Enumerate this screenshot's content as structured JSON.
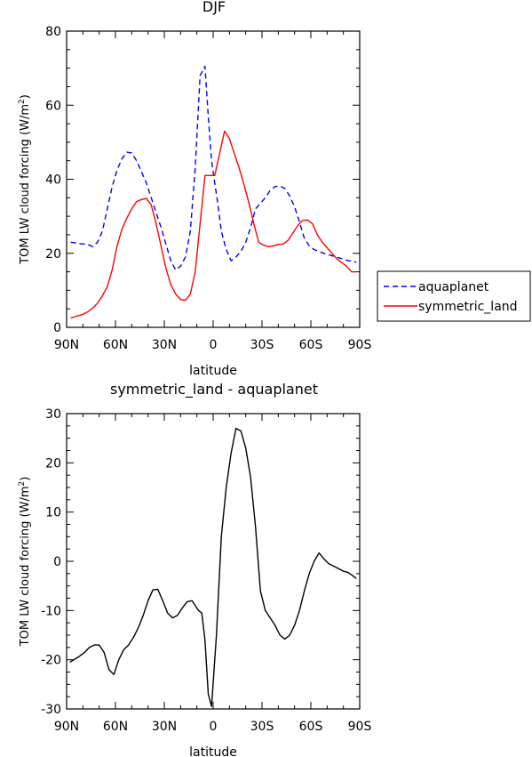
{
  "chart_data": [
    {
      "type": "line",
      "title": "DJF",
      "xlabel": "latitude",
      "ylabel": "TOM LW cloud forcing (W/m2)",
      "ylabel_main": "TOM LW cloud forcing (W/m",
      "ylabel_sup": "2",
      "ylabel_end": ")",
      "xlim": [
        90,
        -90
      ],
      "ylim": [
        0,
        80
      ],
      "xticks": [
        90,
        60,
        30,
        0,
        -30,
        -60,
        -90
      ],
      "xtick_labels": [
        "90N",
        "60N",
        "30N",
        "0",
        "30S",
        "60S",
        "90S"
      ],
      "yticks": [
        0,
        20,
        40,
        60,
        80
      ],
      "ytick_labels": [
        "0",
        "20",
        "40",
        "60",
        "80"
      ],
      "legend_position": "right",
      "series": [
        {
          "name": "aquaplanet",
          "color": "#0000ff",
          "dash": "dashed",
          "x": [
            87.5,
            82,
            77,
            74,
            71,
            68,
            65,
            62,
            59,
            56,
            53,
            50,
            47,
            44,
            41,
            38,
            35,
            32,
            29,
            26,
            23,
            20,
            17,
            14,
            11,
            8,
            5,
            3,
            1,
            -1,
            -3,
            -5,
            -8,
            -11,
            -14,
            -17,
            -20,
            -23,
            -26,
            -29,
            -32,
            -35,
            -38,
            -41,
            -44,
            -47,
            -50,
            -53,
            -56,
            -59,
            -62,
            -65,
            -68,
            -71,
            -74,
            -77,
            -80,
            -83,
            -86,
            -88
          ],
          "y": [
            23,
            22.6,
            22.4,
            21.8,
            23,
            26,
            32,
            38,
            42.5,
            45.5,
            47.3,
            47.1,
            45,
            42,
            39,
            35,
            31,
            27,
            22.5,
            18,
            15.5,
            16.5,
            19,
            26,
            43,
            68,
            70.5,
            57,
            45,
            39,
            33,
            26,
            21,
            18,
            19,
            20.5,
            23,
            27,
            32,
            33.5,
            35,
            37,
            38,
            38.2,
            37.5,
            35.5,
            32.5,
            28.5,
            24,
            22,
            21,
            20.5,
            20,
            19.6,
            19.2,
            18.8,
            18.4,
            18,
            17.8,
            17.6
          ]
        },
        {
          "name": "symmetric_land",
          "color": "#ff0000",
          "dash": "solid",
          "x": [
            87.5,
            84,
            80,
            77,
            74,
            71,
            68,
            65,
            62,
            59,
            56,
            53,
            50,
            47,
            44,
            41,
            38,
            35,
            32,
            29,
            26,
            23,
            20,
            17,
            14,
            11,
            8,
            5,
            2,
            -1,
            -4,
            -7,
            -10,
            -13,
            -16,
            -19,
            -22,
            -25,
            -28,
            -31,
            -34,
            -37,
            -40,
            -43,
            -46,
            -49,
            -52,
            -55,
            -58,
            -61,
            -64,
            -67,
            -70,
            -73,
            -76,
            -79,
            -82,
            -85,
            -88
          ],
          "y": [
            2.5,
            3,
            3.5,
            4.2,
            5.2,
            6.5,
            8.5,
            11,
            15.5,
            22,
            26.5,
            29.5,
            32,
            34,
            34.5,
            34.8,
            33,
            28,
            22,
            16,
            11.5,
            9,
            7.5,
            7.3,
            9,
            15,
            28,
            41,
            41,
            41,
            47,
            53,
            51,
            47,
            43,
            38.5,
            33.5,
            28,
            23,
            22.2,
            21.8,
            22,
            22.4,
            22.5,
            23.5,
            25.5,
            27.5,
            28.9,
            29,
            28,
            25,
            23,
            21.5,
            20,
            18.5,
            17.5,
            16.5,
            15,
            15
          ]
        }
      ]
    },
    {
      "type": "line",
      "title": "symmetric_land - aquaplanet",
      "xlabel": "latitude",
      "ylabel": "TOM LW cloud forcing (W/m2)",
      "ylabel_main": "TOM LW cloud forcing (W/m",
      "ylabel_sup": "2",
      "ylabel_end": ")",
      "xlim": [
        90,
        -90
      ],
      "ylim": [
        -30,
        30
      ],
      "xticks": [
        90,
        60,
        30,
        0,
        -30,
        -60,
        -90
      ],
      "xtick_labels": [
        "90N",
        "60N",
        "30N",
        "0",
        "30S",
        "60S",
        "90S"
      ],
      "yticks": [
        -30,
        -20,
        -10,
        0,
        10,
        20,
        30
      ],
      "ytick_labels": [
        "-30",
        "-20",
        "-10",
        "0",
        "10",
        "20",
        "30"
      ],
      "series": [
        {
          "color": "#000000",
          "dash": "solid",
          "x": [
            88,
            83,
            79,
            76,
            73,
            70,
            67,
            64,
            61,
            58,
            55,
            52,
            49,
            46,
            43,
            40,
            37,
            34,
            31,
            28,
            25,
            22,
            19,
            16,
            13,
            11,
            9,
            7,
            5,
            3,
            1,
            -2,
            -5,
            -8,
            -11,
            -14,
            -17,
            -20,
            -23,
            -26,
            -29,
            -32,
            -35,
            -38,
            -41,
            -44,
            -47,
            -50,
            -53,
            -56,
            -59,
            -62,
            -65,
            -68,
            -71,
            -74,
            -77,
            -80,
            -83,
            -86,
            -88
          ],
          "y": [
            -20.5,
            -19.5,
            -18.5,
            -17.5,
            -17,
            -17,
            -18.5,
            -22,
            -23,
            -20,
            -18,
            -17,
            -15.5,
            -13.5,
            -11,
            -8,
            -5.8,
            -5.7,
            -8,
            -10.5,
            -11.5,
            -11,
            -9.5,
            -8.2,
            -8,
            -9,
            -10,
            -10.5,
            -16,
            -27,
            -29.5,
            -15,
            5,
            15,
            22,
            27,
            26.5,
            23,
            17,
            7,
            -6,
            -10,
            -11.5,
            -13,
            -15,
            -15.8,
            -15,
            -13,
            -10,
            -6,
            -2.5,
            0,
            1.7,
            0.5,
            -0.5,
            -1,
            -1.5,
            -2,
            -2.3,
            -3,
            -3.5
          ]
        }
      ]
    }
  ]
}
